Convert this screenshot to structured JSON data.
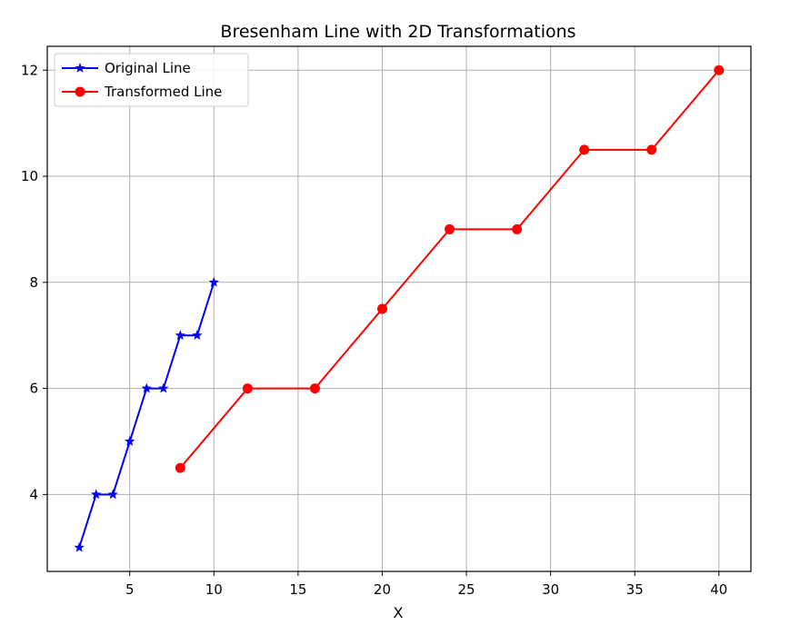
{
  "chart_data": {
    "type": "line",
    "title": "Bresenham Line with 2D Transformations",
    "xlabel": "X",
    "ylabel": "",
    "xlim": [
      0.1,
      41.9
    ],
    "ylim": [
      2.55,
      12.45
    ],
    "xticks": [
      5,
      10,
      15,
      20,
      25,
      30,
      35,
      40
    ],
    "yticks": [
      4,
      6,
      8,
      10,
      12
    ],
    "grid": true,
    "legend_position": "top-left",
    "series": [
      {
        "name": "Original Line",
        "color": "#0000ff",
        "marker": "star",
        "x": [
          2,
          3,
          4,
          5,
          6,
          7,
          8,
          9,
          10
        ],
        "y": [
          3,
          4,
          4,
          5,
          6,
          6,
          7,
          7,
          8
        ]
      },
      {
        "name": "Transformed Line",
        "color": "#ff0000",
        "marker": "circle",
        "x": [
          8,
          12,
          16,
          20,
          24,
          28,
          32,
          36,
          40
        ],
        "y": [
          4.5,
          6,
          6,
          7.5,
          9,
          9,
          10.5,
          10.5,
          12
        ]
      }
    ]
  }
}
